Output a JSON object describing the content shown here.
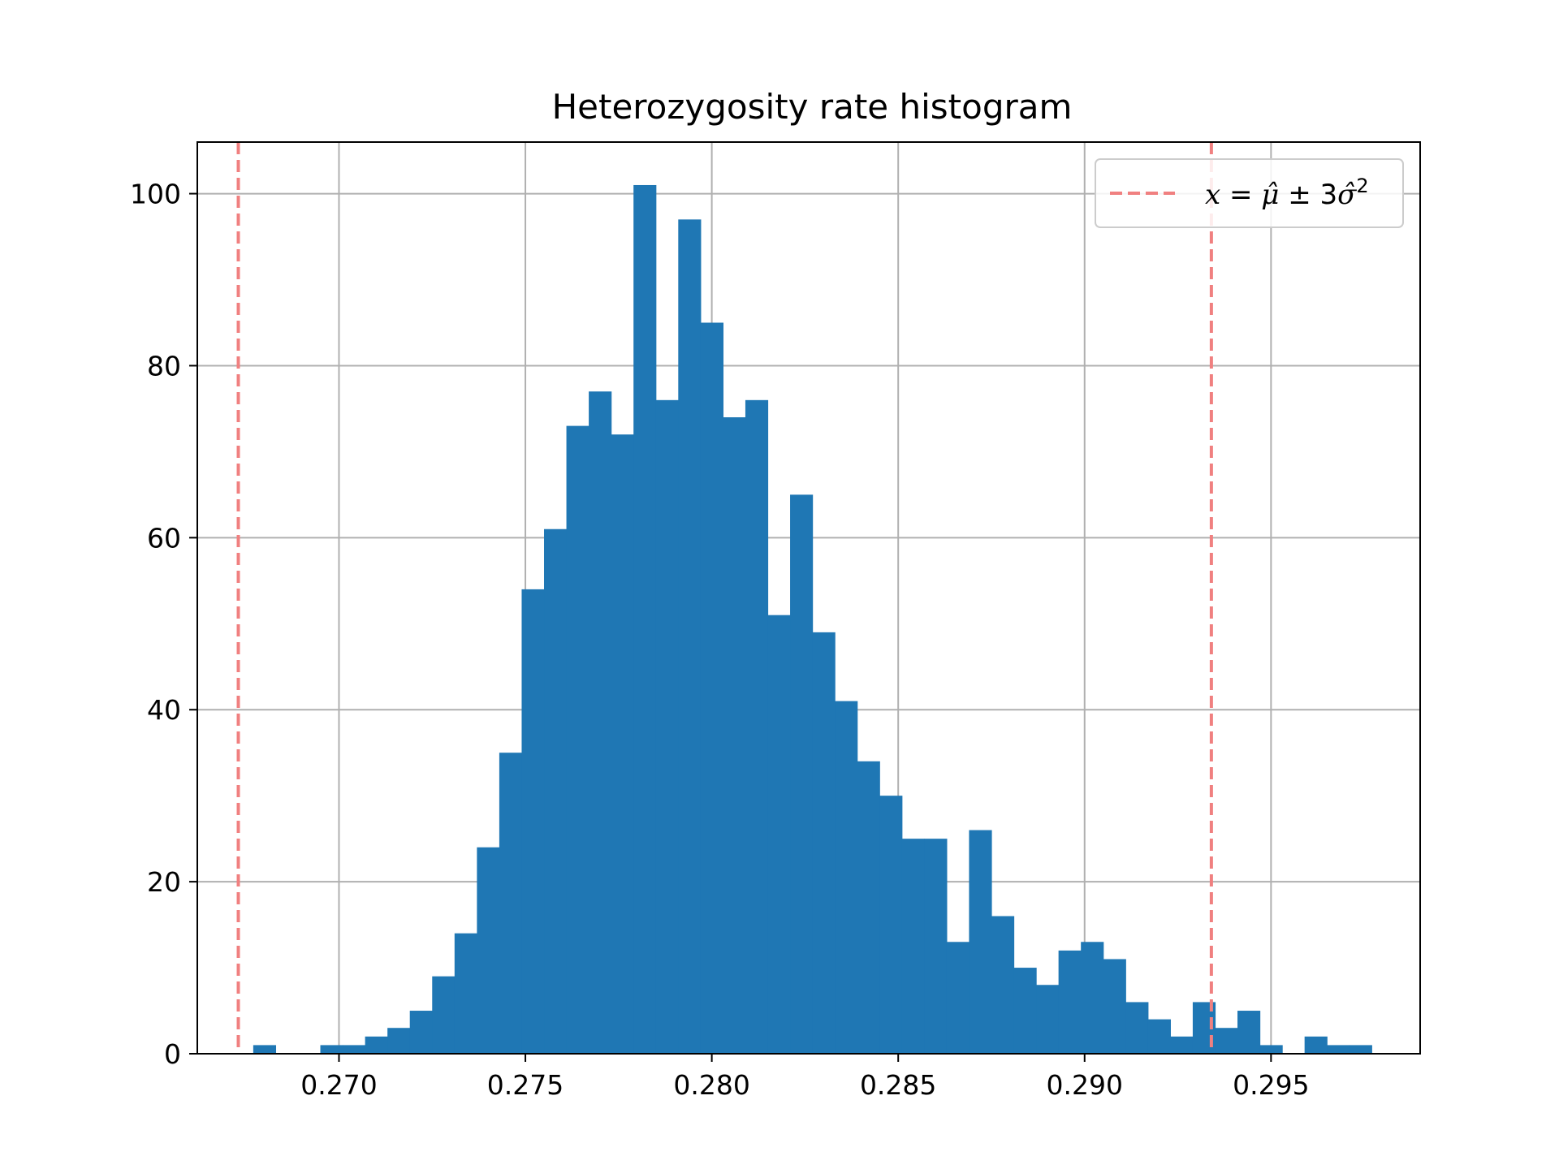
{
  "chart_data": {
    "type": "bar",
    "title": "Heterozygosity rate histogram",
    "xlabel": "",
    "ylabel": "",
    "xlim": [
      0.2662,
      0.299
    ],
    "ylim": [
      0,
      106
    ],
    "grid": true,
    "xticks": [
      0.27,
      0.275,
      0.28,
      0.285,
      0.29,
      0.295
    ],
    "xtick_labels": [
      "0.270",
      "0.275",
      "0.280",
      "0.285",
      "0.290",
      "0.295"
    ],
    "yticks": [
      0,
      20,
      40,
      60,
      80,
      100
    ],
    "ytick_labels": [
      "0",
      "20",
      "40",
      "60",
      "80",
      "100"
    ],
    "bin_start": 0.2677,
    "bin_width": 0.0006,
    "counts": [
      1,
      0,
      0,
      1,
      1,
      2,
      3,
      5,
      9,
      14,
      24,
      35,
      54,
      61,
      73,
      77,
      72,
      101,
      76,
      97,
      85,
      74,
      76,
      51,
      65,
      49,
      41,
      34,
      30,
      25,
      25,
      13,
      26,
      16,
      10,
      8,
      12,
      13,
      11,
      6,
      4,
      2,
      6,
      3,
      5,
      1,
      0,
      2,
      1,
      1
    ],
    "bar_color": "#1f77b4",
    "reference_lines": [
      {
        "x": 0.2673,
        "color": "#f08080",
        "style": "dashed"
      },
      {
        "x": 0.2934,
        "color": "#f08080",
        "style": "dashed"
      }
    ],
    "legend": {
      "placement": "top-right",
      "label_prefix": "x",
      "label_eq": " = ",
      "label_mu": "μ̂",
      "label_pm": " ± 3",
      "label_sigma": "σ̂",
      "label_sup": "2"
    }
  }
}
